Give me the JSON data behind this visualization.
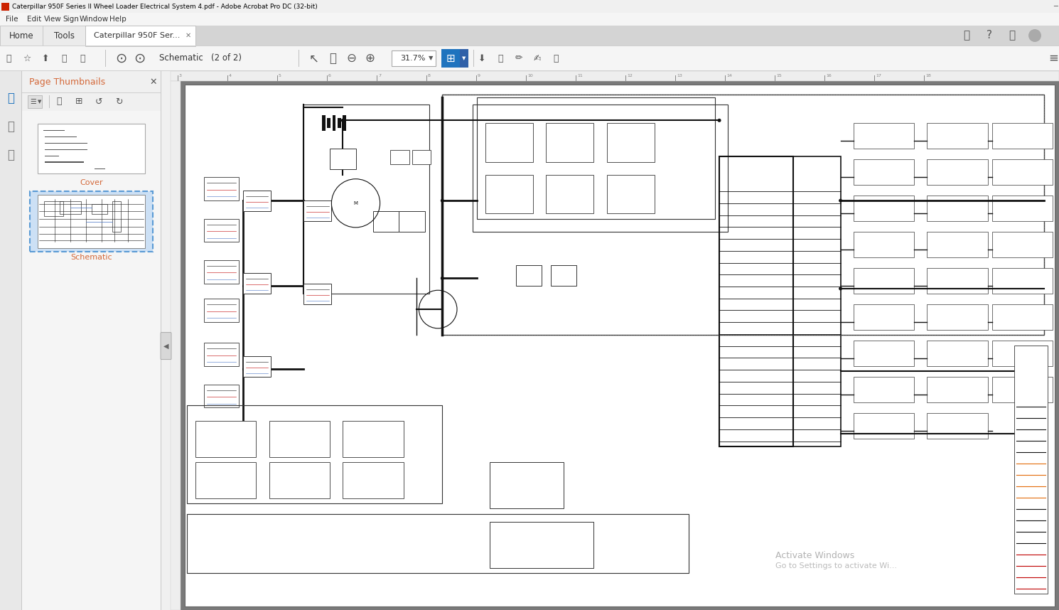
{
  "title_bar_text": "Caterpillar 950F Series II Wheel Loader Electrical System 4.pdf - Adobe Acrobat Pro DC (32-bit)",
  "title_bar_bg": "#ffffff",
  "title_bar_text_color": "#000000",
  "title_bar_icon_color": "#cc2200",
  "window_bg": "#f0f0f0",
  "menu_bar_bg": "#f5f5f5",
  "menu_items": [
    "File",
    "Edit",
    "View",
    "Sign",
    "Window",
    "Help"
  ],
  "tab_home": "Home",
  "tab_tools": "Tools",
  "tab_doc": "Caterpillar 950F Ser...",
  "schematic_label": "Schematic   (2 of 2)",
  "zoom_pct": "31.7%",
  "panel_bg": "#f7f7f7",
  "panel_title": "Page Thumbnails",
  "thumb1_label": "Cover",
  "thumb2_label": "Schematic",
  "watermark_line1": "Activate Windows",
  "watermark_line2": "Go to Settings to activate Wi...",
  "watermark_color": "#aaaaaa",
  "blue_highlight": "#1e73be",
  "blue_highlight2": "#5b9bd5",
  "orange_text": "#d4693a",
  "doc_area_bg": "#808080",
  "page_bg": "#ffffff",
  "ruler_bg": "#f0f0f0",
  "sidebar_bg": "#e8e8e8",
  "panel_separator": "#d0d0d0",
  "schematic_line": "#111111",
  "schematic_blue": "#4472c4",
  "schematic_red": "#c00000",
  "schematic_orange": "#e36c0a",
  "schematic_dashed": "#555555"
}
